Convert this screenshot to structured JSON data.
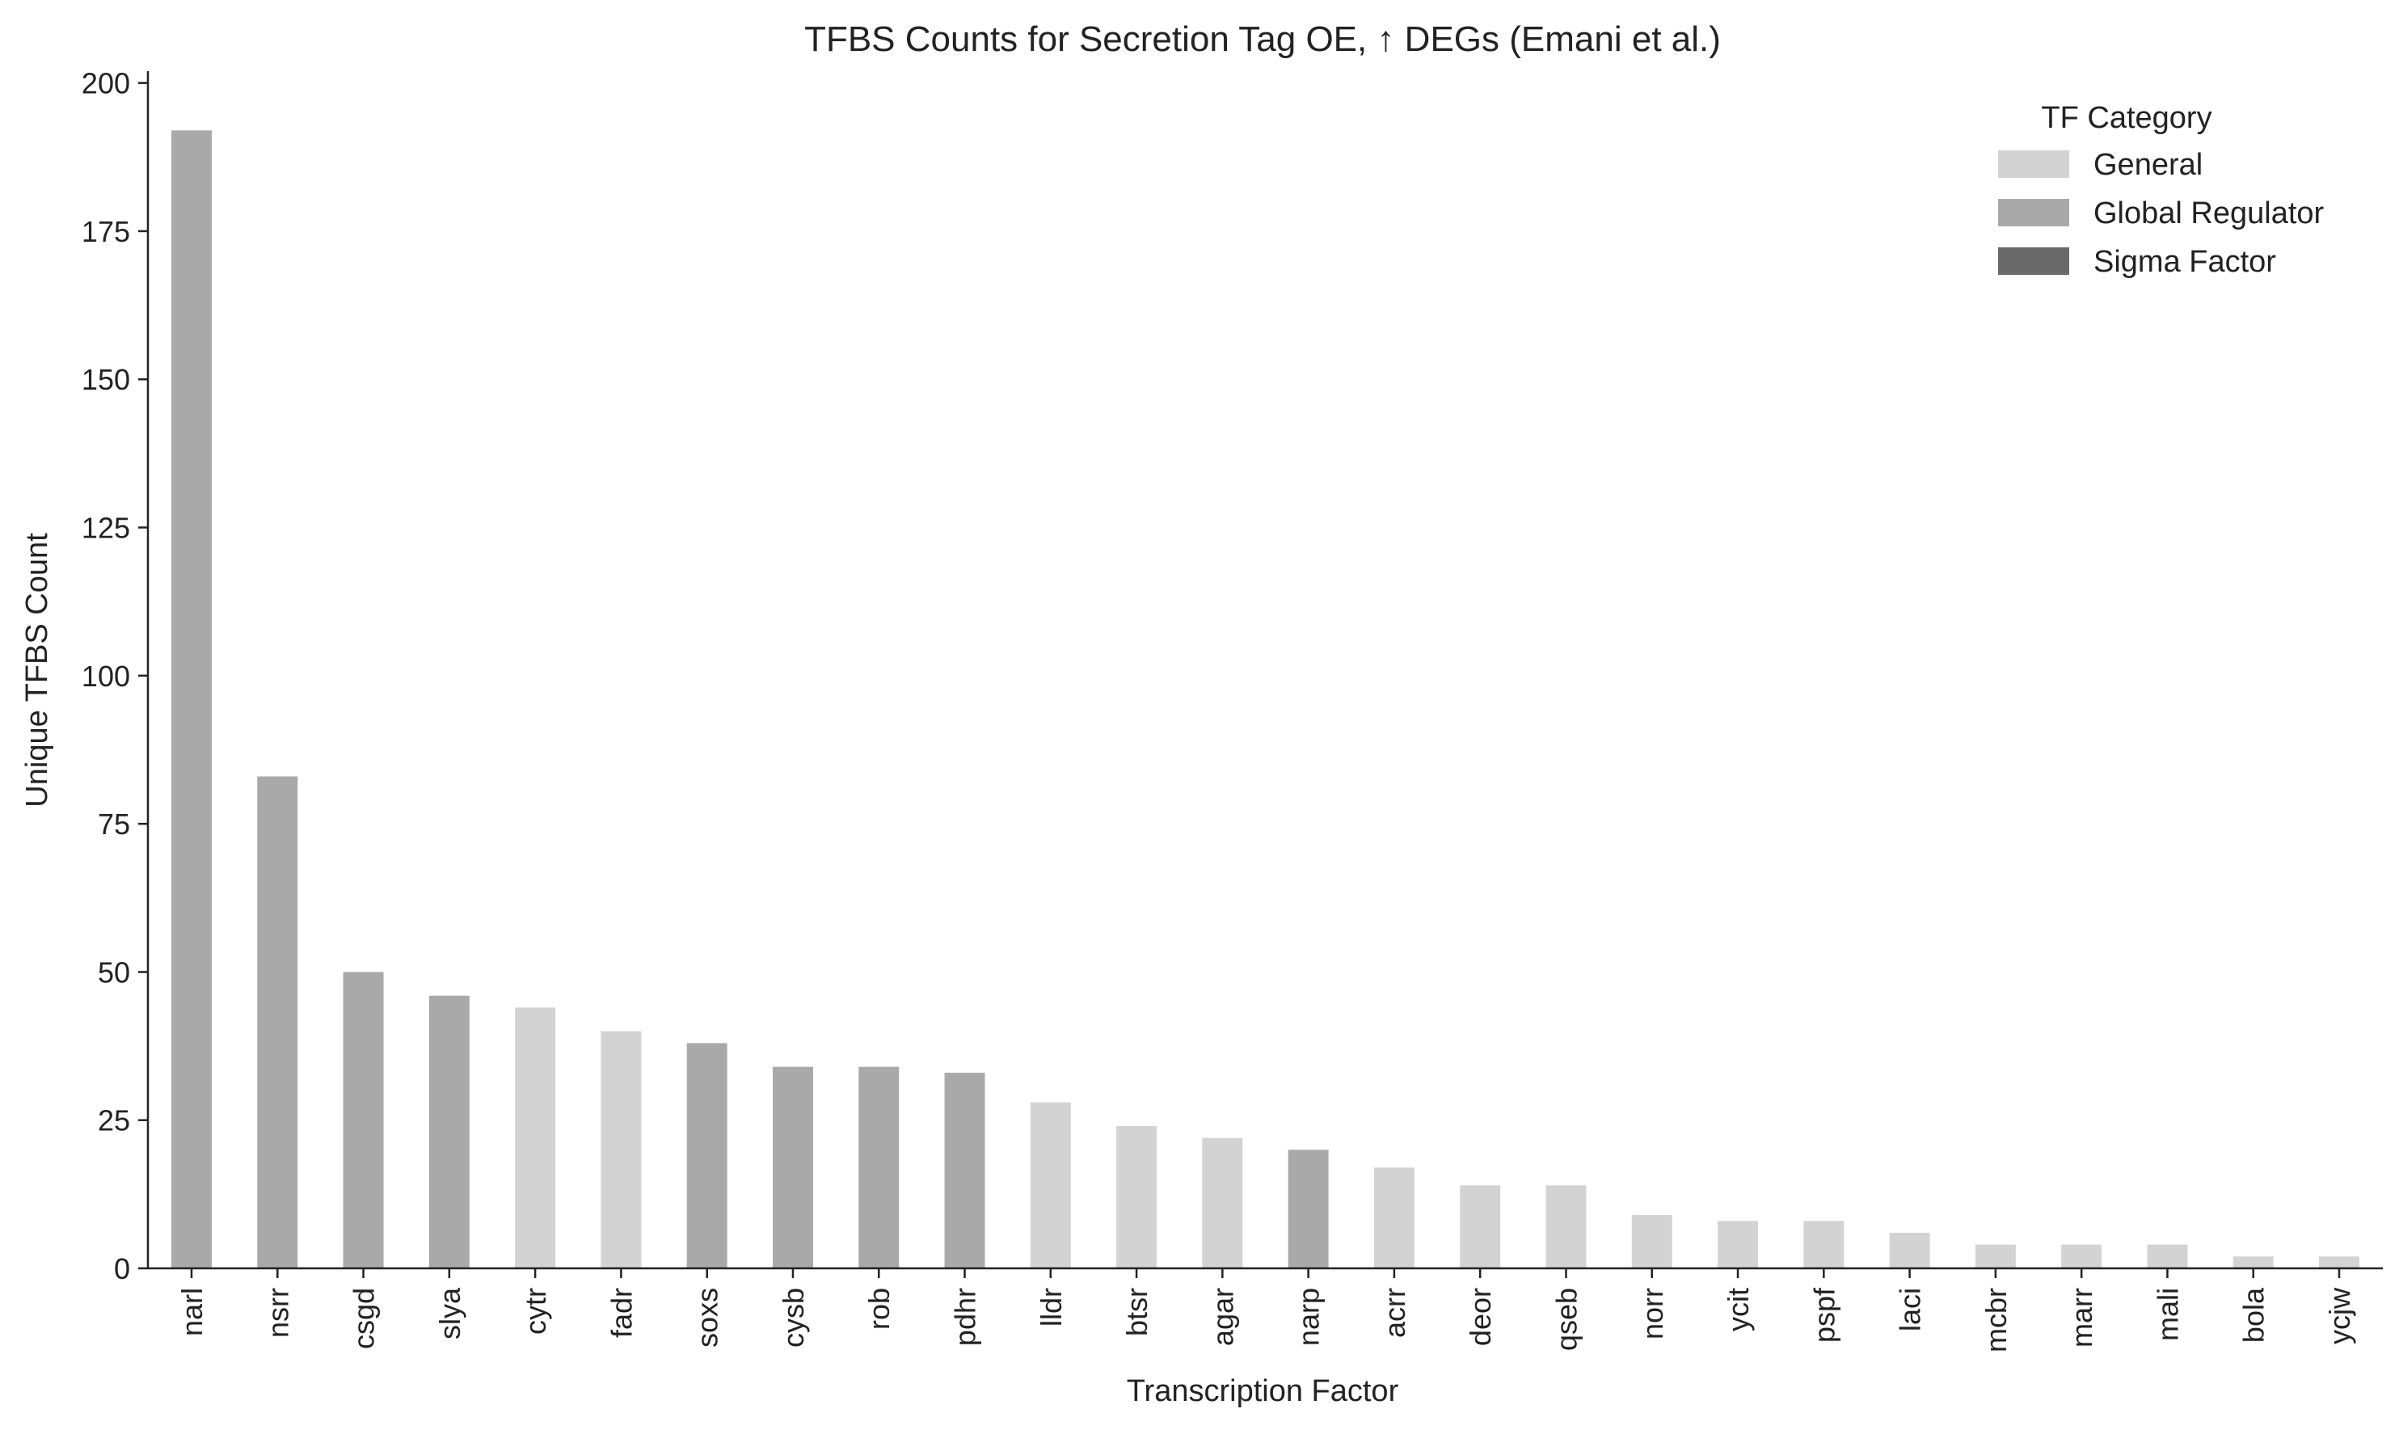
{
  "chart_data": {
    "type": "bar",
    "title": "TFBS Counts for Secretion Tag  OE, ↑ DEGs (Emani et al.)",
    "xlabel": "Transcription Factor",
    "ylabel": "Unique TFBS Count",
    "ylim": [
      0,
      202
    ],
    "yticks": [
      0,
      25,
      50,
      75,
      100,
      125,
      150,
      175,
      200
    ],
    "grid": false,
    "legend": {
      "title": "TF Category",
      "placement": "top-right",
      "entries": [
        {
          "label": "General",
          "color": "#d3d3d3"
        },
        {
          "label": "Global Regulator",
          "color": "#a9a9a9"
        },
        {
          "label": "Sigma Factor",
          "color": "#696969"
        }
      ]
    },
    "categories": [
      "narl",
      "nsrr",
      "csgd",
      "slya",
      "cytr",
      "fadr",
      "soxs",
      "cysb",
      "rob",
      "pdhr",
      "lldr",
      "btsr",
      "agar",
      "narp",
      "acrr",
      "deor",
      "qseb",
      "norr",
      "ycit",
      "pspf",
      "laci",
      "mcbr",
      "marr",
      "mali",
      "bola",
      "ycjw"
    ],
    "values": [
      192,
      83,
      50,
      46,
      44,
      40,
      38,
      34,
      34,
      33,
      28,
      24,
      22,
      20,
      17,
      14,
      14,
      9,
      8,
      8,
      6,
      4,
      4,
      4,
      2,
      2
    ],
    "bar_categories": [
      "Global Regulator",
      "Global Regulator",
      "Global Regulator",
      "Global Regulator",
      "General",
      "General",
      "Global Regulator",
      "Global Regulator",
      "Global Regulator",
      "Global Regulator",
      "General",
      "General",
      "General",
      "Global Regulator",
      "General",
      "General",
      "General",
      "General",
      "General",
      "General",
      "General",
      "General",
      "General",
      "General",
      "General",
      "General"
    ]
  }
}
